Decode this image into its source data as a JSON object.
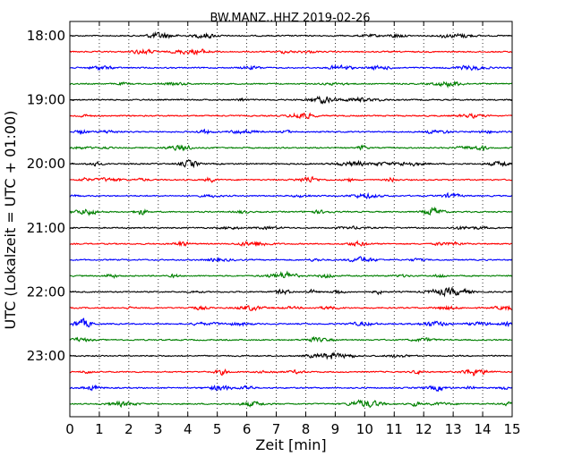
{
  "chart_data": {
    "type": "line",
    "title": "BW.MANZ..HHZ 2019-02-26",
    "xlabel": "Zeit  [min]",
    "ylabel": "UTC (Lokalzeit = UTC + 01:00)",
    "xlim": [
      0,
      15
    ],
    "x_ticks": [
      "0",
      "1",
      "2",
      "3",
      "4",
      "5",
      "6",
      "7",
      "8",
      "9",
      "10",
      "11",
      "12",
      "13",
      "14",
      "15"
    ],
    "y_tick_labels": [
      "18:00",
      "19:00",
      "20:00",
      "21:00",
      "22:00",
      "23:00"
    ],
    "grid": "vertical dotted lines at each minute",
    "trace_colors": [
      "#000000",
      "#ff0000",
      "#0000ff",
      "#008000"
    ],
    "traces": [
      {
        "start": "18:00",
        "color": "#000000"
      },
      {
        "start": "18:15",
        "color": "#ff0000"
      },
      {
        "start": "18:30",
        "color": "#0000ff"
      },
      {
        "start": "18:45",
        "color": "#008000"
      },
      {
        "start": "19:00",
        "color": "#000000"
      },
      {
        "start": "19:15",
        "color": "#ff0000"
      },
      {
        "start": "19:30",
        "color": "#0000ff"
      },
      {
        "start": "19:45",
        "color": "#008000"
      },
      {
        "start": "20:00",
        "color": "#000000"
      },
      {
        "start": "20:15",
        "color": "#ff0000"
      },
      {
        "start": "20:30",
        "color": "#0000ff"
      },
      {
        "start": "20:45",
        "color": "#008000"
      },
      {
        "start": "21:00",
        "color": "#000000"
      },
      {
        "start": "21:15",
        "color": "#ff0000"
      },
      {
        "start": "21:30",
        "color": "#0000ff"
      },
      {
        "start": "21:45",
        "color": "#008000"
      },
      {
        "start": "22:00",
        "color": "#000000"
      },
      {
        "start": "22:15",
        "color": "#ff0000"
      },
      {
        "start": "22:30",
        "color": "#0000ff"
      },
      {
        "start": "22:45",
        "color": "#008000"
      },
      {
        "start": "23:00",
        "color": "#000000"
      },
      {
        "start": "23:15",
        "color": "#ff0000"
      },
      {
        "start": "23:30",
        "color": "#0000ff"
      },
      {
        "start": "23:45",
        "color": "#008000"
      }
    ]
  }
}
